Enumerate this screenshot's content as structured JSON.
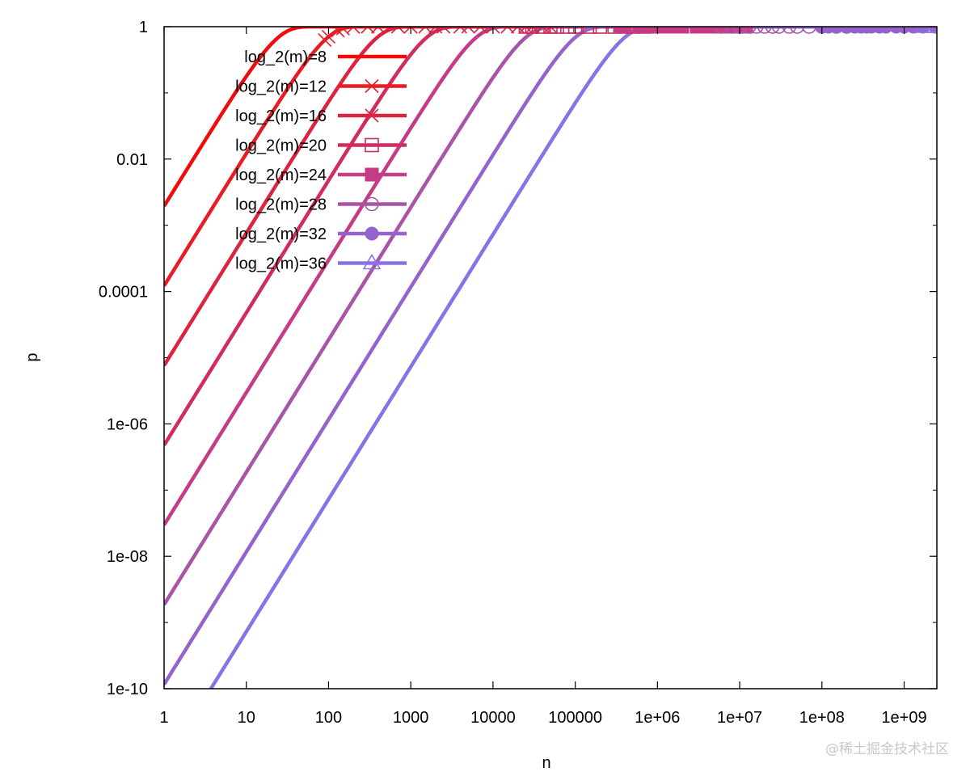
{
  "chart_data": {
    "type": "line",
    "title": "",
    "xlabel": "n",
    "ylabel": "p",
    "x_scale": "log",
    "y_scale": "log",
    "xlim": [
      1,
      2500000000
    ],
    "ylim": [
      1e-10,
      1
    ],
    "x_ticks": [
      {
        "value": 1,
        "label": "1"
      },
      {
        "value": 10,
        "label": "10"
      },
      {
        "value": 100,
        "label": "100"
      },
      {
        "value": 1000,
        "label": "1000"
      },
      {
        "value": 10000,
        "label": "10000"
      },
      {
        "value": 100000,
        "label": "100000"
      },
      {
        "value": 1000000,
        "label": "1e+06"
      },
      {
        "value": 10000000,
        "label": "1e+07"
      },
      {
        "value": 100000000,
        "label": "1e+08"
      },
      {
        "value": 1000000000,
        "label": "1e+09"
      }
    ],
    "y_ticks": [
      {
        "value": 1,
        "label": "1"
      },
      {
        "value": 0.01,
        "label": "0.01"
      },
      {
        "value": 0.0001,
        "label": "0.0001"
      },
      {
        "value": 1e-06,
        "label": "1e-06"
      },
      {
        "value": 1e-08,
        "label": "1e-08"
      },
      {
        "value": 1e-10,
        "label": "1e-10"
      }
    ],
    "legend_position": "top-left",
    "grid": false,
    "series": [
      {
        "name": "log_2(m)=8",
        "log2m": 8,
        "color": "#f00c0c",
        "marker": "none",
        "markers_x": []
      },
      {
        "name": "log_2(m)=12",
        "log2m": 12,
        "color": "#e81c24",
        "marker": "cross",
        "markers_x": [
          90,
          100,
          130,
          150,
          200,
          300,
          400,
          700,
          1000
        ]
      },
      {
        "name": "log_2(m)=16",
        "log2m": 16,
        "color": "#dc2440",
        "marker": "star",
        "markers_x": [
          1500,
          2000,
          2500,
          4000,
          5000,
          7000,
          10000,
          15000,
          20000,
          25000,
          30000,
          40000,
          50000
        ]
      },
      {
        "name": "log_2(m)=20",
        "log2m": 20,
        "color": "#d02c5c",
        "marker": "open-square",
        "markers_x": [
          25000,
          30000,
          40000,
          50000,
          60000,
          80000,
          100000,
          150000,
          200000,
          300000,
          400000,
          500000,
          700000
        ]
      },
      {
        "name": "log_2(m)=24",
        "log2m": 24,
        "color": "#c43c84",
        "marker": "filled-square",
        "markers_x": [
          350000,
          400000,
          600000,
          700000,
          1000000,
          1300000,
          1600000,
          2000000,
          3000000,
          4000000,
          5000000,
          7000000,
          9000000,
          12000000
        ]
      },
      {
        "name": "log_2(m)=28",
        "log2m": 28,
        "color": "#a855a8",
        "marker": "open-circle",
        "markers_x": [
          6000000,
          8000000,
          10000000,
          13000000,
          16000000,
          20000000,
          25000000,
          30000000,
          40000000,
          50000000,
          70000000,
          100000000,
          150000000,
          200000000
        ]
      },
      {
        "name": "log_2(m)=32",
        "log2m": 32,
        "color": "#9464cc",
        "marker": "filled-circle",
        "markers_x": [
          100000000,
          120000000,
          150000000,
          200000000,
          250000000,
          300000000,
          350000000,
          400000000,
          500000000,
          600000000,
          800000000,
          1000000000,
          1300000000,
          1700000000,
          2400000000
        ]
      },
      {
        "name": "log_2(m)=36",
        "log2m": 36,
        "color": "#8a72e6",
        "marker": "open-triangle",
        "markers_x": [
          1700000000,
          2400000000
        ]
      }
    ]
  },
  "watermark": "@稀土掘金技术社区"
}
